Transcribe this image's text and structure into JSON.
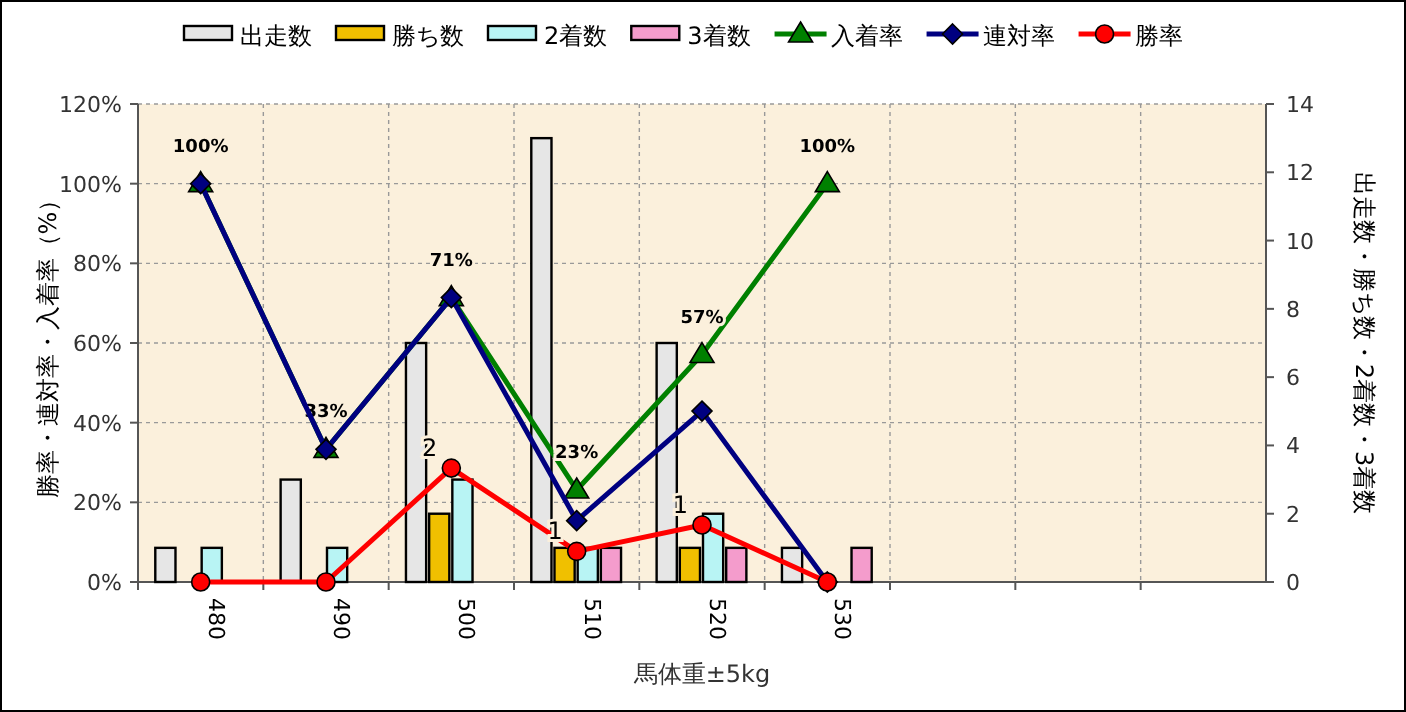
{
  "chart_data": {
    "type": "bar",
    "xlabel": "馬体重±5kg",
    "ylabel": "勝率・連対率・入着率（%）",
    "y2label": "出走数・勝ち数・2着数・3着数",
    "categories": [
      "480",
      "490",
      "500",
      "510",
      "520",
      "530",
      null,
      null,
      null
    ],
    "series": [
      {
        "name": "出走数",
        "axis": "y2",
        "color": "#e6e6e6",
        "values": [
          1,
          3,
          7,
          13,
          7,
          1,
          null,
          null,
          null
        ]
      },
      {
        "name": "勝ち数",
        "axis": "y2",
        "color": "#f0c000",
        "values": [
          0,
          0,
          2,
          1,
          1,
          0,
          null,
          null,
          null
        ]
      },
      {
        "name": "2着数",
        "axis": "y2",
        "color": "#b8f4f4",
        "values": [
          1,
          1,
          3,
          1,
          2,
          0,
          null,
          null,
          null
        ]
      },
      {
        "name": "3着数",
        "axis": "y2",
        "color": "#f49ccc",
        "values": [
          0,
          0,
          0,
          1,
          1,
          1,
          null,
          null,
          null
        ]
      },
      {
        "name": "入着率",
        "type": "line",
        "color": "#008000",
        "marker": "triangle",
        "values": [
          100,
          33.3,
          71.4,
          23.1,
          57.1,
          100,
          null,
          null,
          null
        ],
        "value_labels": [
          "100%",
          "33%",
          "71%",
          "23%",
          "57%",
          "100%",
          null,
          null,
          null
        ]
      },
      {
        "name": "連対率",
        "type": "line",
        "color": "#000080",
        "marker": "diamond",
        "values": [
          100,
          33.3,
          71.4,
          15.4,
          42.9,
          0,
          null,
          null,
          null
        ]
      },
      {
        "name": "勝率",
        "type": "line",
        "color": "#ff0000",
        "marker": "circle",
        "values": [
          0,
          0,
          28.6,
          7.7,
          14.3,
          0,
          null,
          null,
          null
        ]
      }
    ],
    "ylim": [
      0,
      120
    ],
    "yticks": [
      {
        "value": 0,
        "label": "0%"
      },
      {
        "value": 20,
        "label": "20%"
      },
      {
        "value": 40,
        "label": "40%"
      },
      {
        "value": 60,
        "label": "60%"
      },
      {
        "value": 80,
        "label": "80%"
      },
      {
        "value": 100,
        "label": "100%"
      },
      {
        "value": 120,
        "label": "120%"
      }
    ],
    "y2lim": [
      0,
      14
    ],
    "y2ticks": [
      0,
      2,
      4,
      6,
      8,
      10,
      12,
      14
    ],
    "annotations": [
      {
        "text": "2",
        "x": "500",
        "y": 28.6
      },
      {
        "text": "1",
        "x": "510",
        "y": 7.7
      },
      {
        "text": "1",
        "x": "520",
        "y": 14.3
      }
    ],
    "grid": true,
    "legend": "top"
  }
}
